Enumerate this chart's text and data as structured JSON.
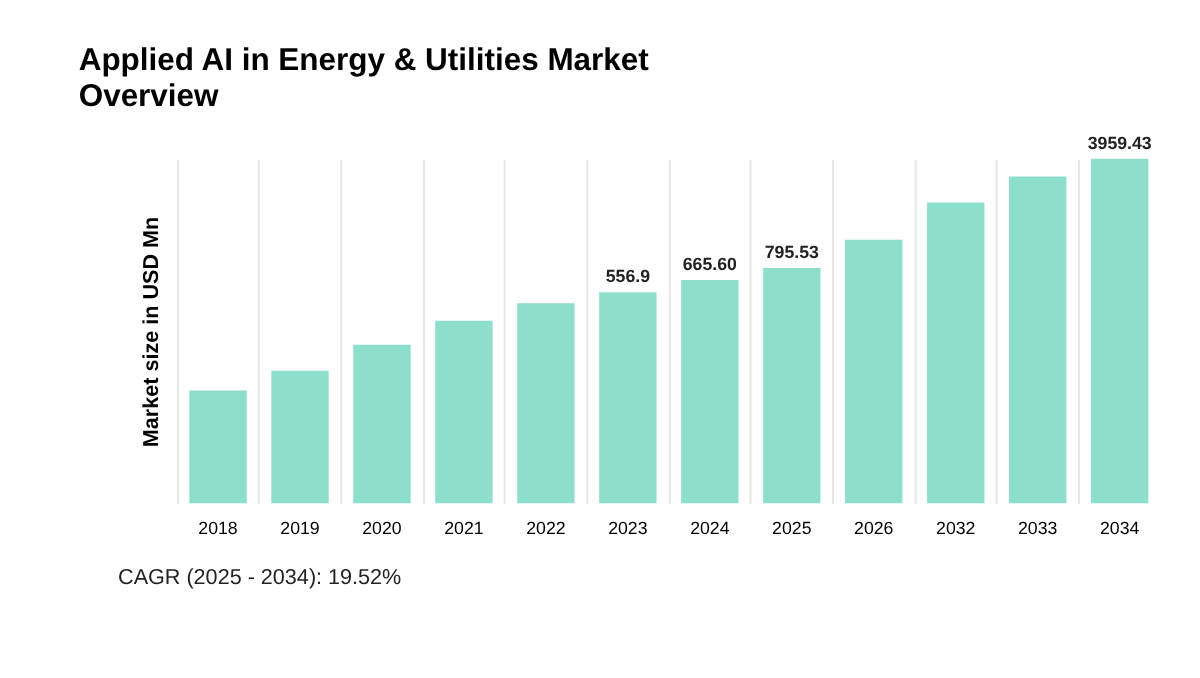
{
  "chart_data": {
    "type": "bar",
    "title": [
      "Applied AI in Energy & Utilities Market",
      "Overview"
    ],
    "ylabel": "Market size in USD Mn",
    "categories": [
      "2018",
      "2019",
      "2020",
      "2021",
      "2022",
      "2023",
      "2024",
      "2025",
      "2026",
      "2032",
      "2033",
      "2034"
    ],
    "values": [
      131,
      175,
      257,
      366,
      474,
      556.9,
      665.6,
      795.53,
      1203,
      2080,
      3060,
      3959.43
    ],
    "log": true,
    "ylim": [
      25,
      3959.43
    ],
    "tick_labels": "x",
    "value_labels": [
      null,
      null,
      null,
      null,
      null,
      "556.9",
      "665.60",
      "795.53",
      null,
      null,
      null,
      "3959.43"
    ],
    "color": "#8ddfcb",
    "grid": "x",
    "annotations": [
      "CAGR (2025 - 2034): 19.52%"
    ]
  }
}
